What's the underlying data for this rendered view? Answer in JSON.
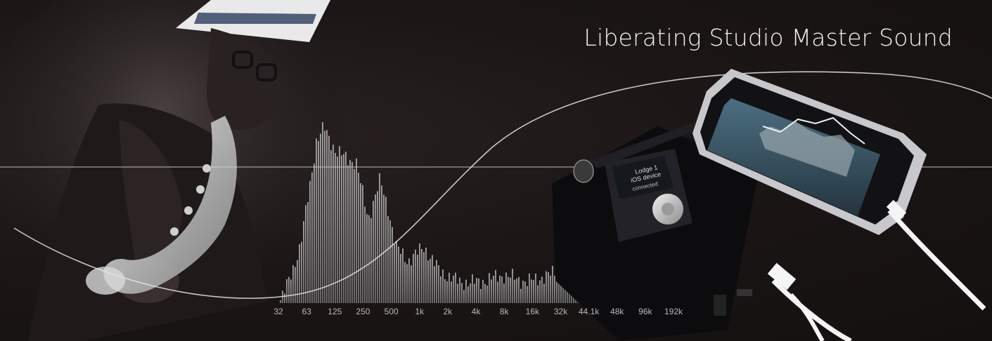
{
  "headline": "Liberating Studio Master Sound",
  "frequency_axis": {
    "labels": [
      "32",
      "63",
      "125",
      "250",
      "500",
      "1k",
      "2k",
      "4k",
      "8k",
      "16k",
      "32k",
      "44.1k",
      "48k",
      "96k",
      "192k"
    ]
  },
  "player_screen": {
    "line1": "Lodge 1",
    "line2": "iOS device",
    "line3": "connected"
  },
  "colors": {
    "background": "#1a1414",
    "headline": "#f2f2f2",
    "spectrum_bars": "#8c8c8c",
    "curves": "#e6e6e6",
    "phone_screen": "#3a5566",
    "cable": "#f5f5f5"
  }
}
